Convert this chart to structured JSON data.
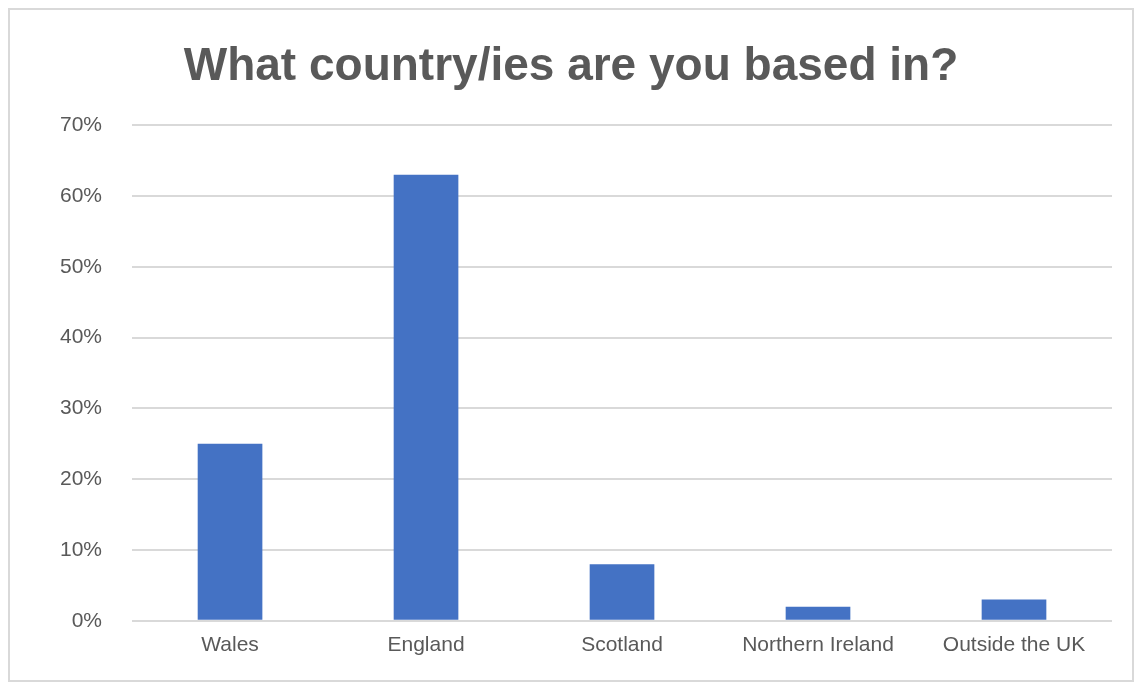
{
  "chart_data": {
    "type": "bar",
    "title": "What country/ies are you based in?",
    "categories": [
      "Wales",
      "England",
      "Scotland",
      "Northern Ireland",
      "Outside the UK"
    ],
    "values": [
      25,
      63,
      8,
      2,
      3
    ],
    "color": "#4472c4",
    "ylim": [
      0,
      70
    ],
    "yticks": [
      {
        "value": 0,
        "label": "0%"
      },
      {
        "value": 10,
        "label": "10%"
      },
      {
        "value": 20,
        "label": "20%"
      },
      {
        "value": 30,
        "label": "30%"
      },
      {
        "value": 40,
        "label": "40%"
      },
      {
        "value": 50,
        "label": "50%"
      },
      {
        "value": 60,
        "label": "60%"
      },
      {
        "value": 70,
        "label": "70%"
      }
    ],
    "grid": "y",
    "legend": false
  }
}
